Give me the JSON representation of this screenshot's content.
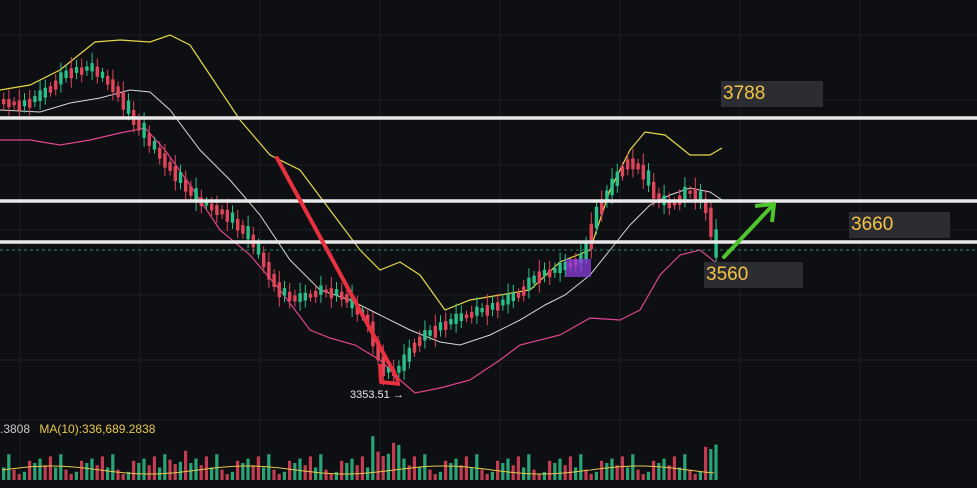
{
  "colors": {
    "background": "#0e0f12",
    "bull": "#2bbf8a",
    "bear": "#e0455a",
    "upper_band": "#e6d84a",
    "mid_band": "#d8d8d8",
    "lower_band": "#e0458f",
    "level_line": "#e9e9e9",
    "arrow_down": "#e8303f",
    "arrow_up": "#4ec52f",
    "label_text": "#f6c343",
    "label_bg": "#2b2d33"
  },
  "levels": [
    {
      "label": "3788"
    },
    {
      "label": "3660"
    },
    {
      "label": "3560"
    }
  ],
  "low_marker": "3353.51 →",
  "volume_indicator": {
    "value_text": ".3808",
    "ma_text": "MA(10):336,689.2838"
  },
  "chart_data": {
    "type": "candlestick",
    "horizontal_levels": [
      3788,
      3700,
      3660,
      3560
    ],
    "annotated_low": 3353.51,
    "bollinger_bands": true,
    "volume_panel": true,
    "grid": true
  }
}
